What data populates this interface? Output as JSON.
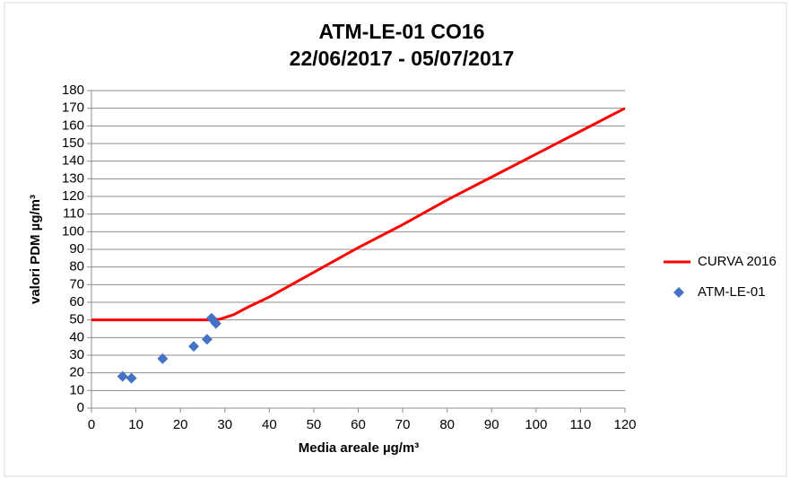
{
  "chart_data": {
    "type": "scatter",
    "title": "ATM-LE-01 CO16",
    "subtitle": "22/06/2017 - 05/07/2017",
    "xlabel": "Media areale µg/m³",
    "ylabel": "valori PDM µg/m³",
    "xlim": [
      0,
      120
    ],
    "ylim": [
      0,
      180
    ],
    "xticks": [
      0,
      10,
      20,
      30,
      40,
      50,
      60,
      70,
      80,
      90,
      100,
      110,
      120
    ],
    "yticks": [
      0,
      10,
      20,
      30,
      40,
      50,
      60,
      70,
      80,
      90,
      100,
      110,
      120,
      130,
      140,
      150,
      160,
      170,
      180
    ],
    "grid": true,
    "legend": "right",
    "series": [
      {
        "name": "CURVA 2016",
        "type": "line",
        "color": "#ff0000",
        "x": [
          0,
          27,
          29,
          32,
          35,
          40,
          50,
          60,
          70,
          80,
          90,
          100,
          110,
          120
        ],
        "values": [
          50,
          50,
          50.5,
          53,
          57,
          63,
          77,
          91,
          104,
          118,
          131,
          144,
          157,
          170
        ]
      },
      {
        "name": "ATM-LE-01",
        "type": "scatter",
        "color": "#4472c4",
        "x": [
          7,
          9,
          16,
          23,
          26,
          27,
          28
        ],
        "values": [
          18,
          17,
          28,
          35,
          39,
          51,
          48
        ]
      }
    ]
  }
}
